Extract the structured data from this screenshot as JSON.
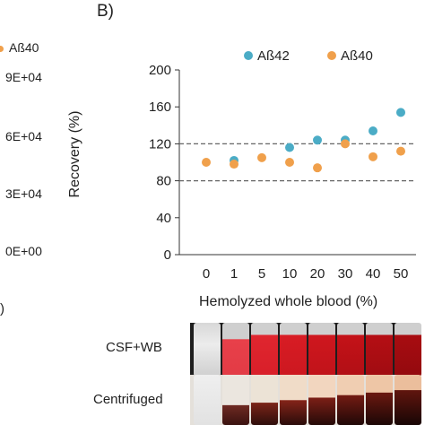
{
  "panel_label": "B)",
  "left_panel": {
    "legend_label": "Aß40",
    "legend_color": "#f0a04b",
    "ticks": [
      "9E+04",
      "6E+04",
      "3E+04",
      "0E+00"
    ],
    "fragment": ")"
  },
  "chart_data": {
    "type": "scatter",
    "ylabel": "Recovery (%)",
    "xlabel": "Hemolyzed whole blood (%)",
    "categories": [
      "0",
      "1",
      "5",
      "10",
      "20",
      "30",
      "40",
      "50"
    ],
    "ylim": [
      0,
      200
    ],
    "yticks": [
      0,
      40,
      80,
      120,
      160,
      200
    ],
    "grid": false,
    "legend_position": "top",
    "reference_lines": [
      120,
      80
    ],
    "series": [
      {
        "name": "Aß42",
        "color": "#4bacc6",
        "values": [
          null,
          102,
          null,
          116,
          124,
          124,
          134,
          154
        ]
      },
      {
        "name": "Aß40",
        "color": "#f0a04b",
        "values": [
          100,
          98,
          105,
          100,
          94,
          120,
          106,
          112
        ]
      }
    ]
  },
  "images": {
    "row1_label": "CSF+WB",
    "row2_label": "Centrifuged"
  }
}
